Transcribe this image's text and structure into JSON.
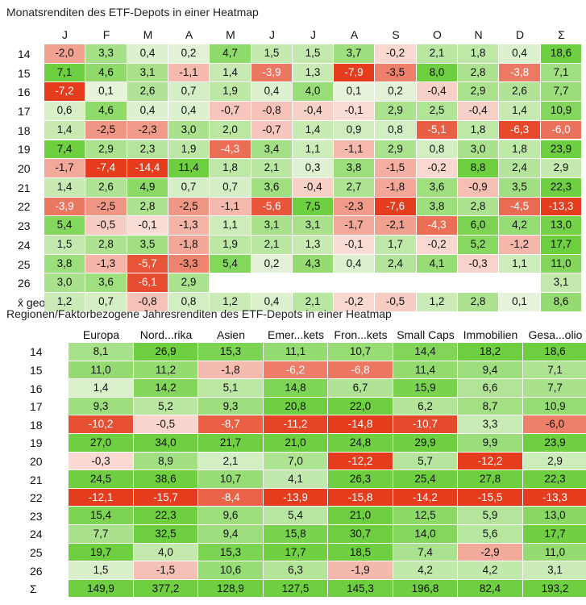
{
  "chart_data": [
    {
      "type": "heatmap",
      "title": "Monatsrenditen des ETF-Depots in einer Heatmap",
      "columns": [
        "J",
        "F",
        "M",
        "A",
        "M",
        "J",
        "J",
        "A",
        "S",
        "O",
        "N",
        "D",
        "Σ"
      ],
      "rows": [
        "14",
        "15",
        "16",
        "17",
        "18",
        "19",
        "20",
        "21",
        "22",
        "23",
        "24",
        "25",
        "26",
        "x̄ geom"
      ],
      "values": [
        [
          -2.0,
          3.3,
          0.4,
          0.2,
          4.7,
          1.5,
          1.5,
          3.7,
          -0.2,
          2.1,
          1.8,
          0.4,
          18.6
        ],
        [
          7.1,
          4.6,
          3.1,
          -1.1,
          1.4,
          -3.9,
          1.3,
          -7.9,
          -3.5,
          8.0,
          2.8,
          -3.8,
          7.1
        ],
        [
          -7.2,
          0.1,
          2.6,
          0.7,
          1.9,
          0.4,
          4.0,
          0.1,
          0.2,
          -0.4,
          2.9,
          2.6,
          7.7
        ],
        [
          0.6,
          4.6,
          0.4,
          0.4,
          -0.7,
          -0.8,
          -0.4,
          -0.1,
          2.9,
          2.5,
          -0.4,
          1.4,
          10.9
        ],
        [
          1.4,
          -2.5,
          -2.3,
          3.0,
          2.0,
          -0.7,
          1.4,
          0.9,
          0.8,
          -5.1,
          1.8,
          -6.3,
          -6.0
        ],
        [
          7.4,
          2.9,
          2.3,
          1.9,
          -4.3,
          3.4,
          1.1,
          -1.1,
          2.9,
          0.8,
          3.0,
          1.8,
          23.9
        ],
        [
          -1.7,
          -7.4,
          -14.4,
          11.4,
          1.8,
          2.1,
          0.3,
          3.8,
          -1.5,
          -0.2,
          8.8,
          2.4,
          2.9
        ],
        [
          1.4,
          2.6,
          4.9,
          0.7,
          0.7,
          3.6,
          -0.4,
          2.7,
          -1.8,
          3.6,
          -0.9,
          3.5,
          22.3
        ],
        [
          -3.9,
          -2.5,
          2.8,
          -2.5,
          -1.1,
          -5.6,
          7.5,
          -2.3,
          -7.6,
          3.8,
          2.8,
          -4.5,
          -13.3
        ],
        [
          5.4,
          -0.5,
          -0.1,
          -1.3,
          1.1,
          3.1,
          3.1,
          -1.7,
          -2.1,
          -4.3,
          6.0,
          4.2,
          13.0
        ],
        [
          1.5,
          2.8,
          3.5,
          -1.8,
          1.9,
          2.1,
          1.3,
          -0.1,
          1.7,
          -0.2,
          5.2,
          -1.2,
          17.7
        ],
        [
          3.8,
          -1.3,
          -5.7,
          -3.3,
          5.4,
          0.2,
          4.3,
          0.4,
          2.4,
          4.1,
          -0.3,
          1.1,
          11.0
        ],
        [
          3.0,
          3.6,
          -6.1,
          2.9,
          null,
          null,
          null,
          null,
          null,
          null,
          null,
          null,
          3.1
        ],
        [
          1.2,
          0.7,
          -0.8,
          0.8,
          1.2,
          0.4,
          2.1,
          -0.2,
          -0.5,
          1.2,
          2.8,
          0.1,
          8.6
        ]
      ]
    },
    {
      "type": "heatmap",
      "title": "Regionen/Faktorbezogene Jahresrenditen des ETF-Depots in einer Heatmap",
      "columns": [
        "Europa",
        "Nord...rika",
        "Asien",
        "Emer...kets",
        "Fron...kets",
        "Small Caps",
        "Immobilien",
        "Gesa...olio"
      ],
      "rows": [
        "14",
        "15",
        "16",
        "17",
        "18",
        "19",
        "20",
        "21",
        "22",
        "23",
        "24",
        "25",
        "26",
        "Σ"
      ],
      "values": [
        [
          8.1,
          26.9,
          15.3,
          11.1,
          10.7,
          14.4,
          18.2,
          18.6
        ],
        [
          11.0,
          11.2,
          -1.8,
          -6.2,
          -6.8,
          11.4,
          9.4,
          7.1
        ],
        [
          1.4,
          14.2,
          5.1,
          14.8,
          6.7,
          15.9,
          6.6,
          7.7
        ],
        [
          9.3,
          5.2,
          9.3,
          20.8,
          22.0,
          6.2,
          8.7,
          10.9
        ],
        [
          -10.2,
          -0.5,
          -8.7,
          -11.2,
          -14.8,
          -10.7,
          3.3,
          -6.0
        ],
        [
          27.0,
          34.0,
          21.7,
          21.0,
          24.8,
          29.9,
          9.9,
          23.9
        ],
        [
          -0.3,
          8.9,
          2.1,
          7.0,
          -12.2,
          5.7,
          -12.2,
          2.9
        ],
        [
          24.5,
          38.6,
          10.7,
          4.1,
          26.3,
          25.4,
          27.8,
          22.3
        ],
        [
          -12.1,
          -15.7,
          -8.4,
          -13.9,
          -15.8,
          -14.2,
          -15.5,
          -13.3
        ],
        [
          15.4,
          22.3,
          9.6,
          5.4,
          21.0,
          12.5,
          5.9,
          13.0
        ],
        [
          7.7,
          32.5,
          9.4,
          15.8,
          30.7,
          14.0,
          5.6,
          17.7
        ],
        [
          19.7,
          4.0,
          15.3,
          17.7,
          18.5,
          7.4,
          -2.9,
          11.0
        ],
        [
          1.5,
          -1.5,
          10.6,
          6.3,
          -1.9,
          4.2,
          4.2,
          3.1
        ],
        [
          149.9,
          377.2,
          128.9,
          127.5,
          145.3,
          196.8,
          82.4,
          193.2
        ]
      ]
    }
  ]
}
